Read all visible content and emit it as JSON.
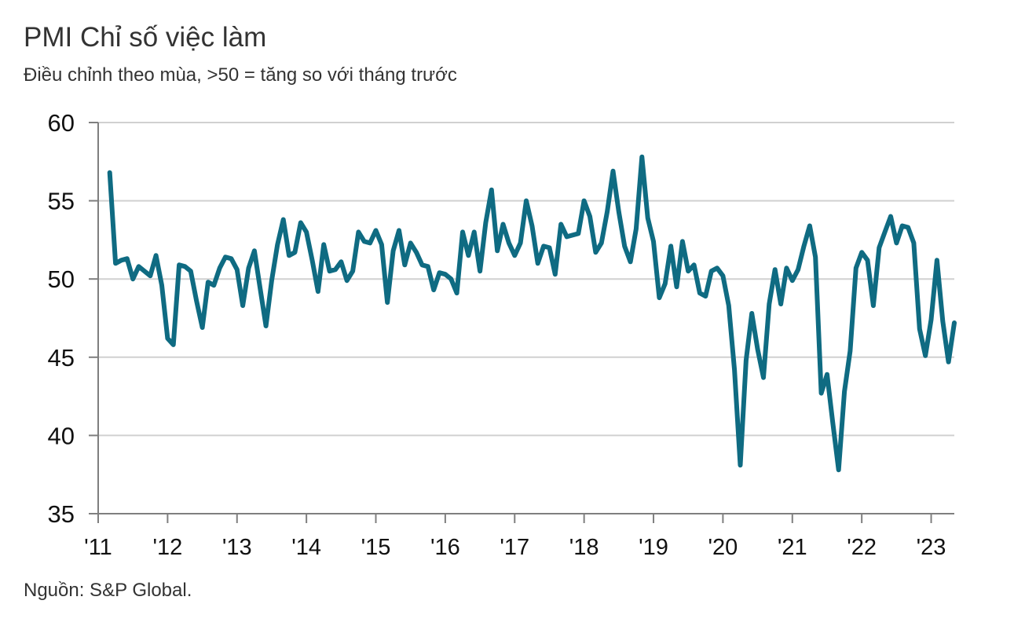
{
  "title": "PMI Chỉ số việc làm",
  "subtitle": "Điều chỉnh theo mùa, >50 = tăng so với tháng trước",
  "source": "Nguồn: S&P Global.",
  "colors": {
    "line": "#0f6b82",
    "grid": "#d0d0d0",
    "axis": "#7f7f7f"
  },
  "chart_data": {
    "type": "line",
    "title": "PMI Chỉ số việc làm",
    "subtitle": "Điều chỉnh theo mùa, >50 = tăng so với tháng trước",
    "xlabel": "",
    "ylabel": "",
    "ylim": [
      35,
      60
    ],
    "yticks": [
      35,
      40,
      45,
      50,
      55,
      60
    ],
    "xlim": [
      "2011-01",
      "2023-05"
    ],
    "xticks": [
      {
        "date": "2011-01",
        "label": "'11"
      },
      {
        "date": "2012-01",
        "label": "'12"
      },
      {
        "date": "2013-01",
        "label": "'13"
      },
      {
        "date": "2014-01",
        "label": "'14"
      },
      {
        "date": "2015-01",
        "label": "'15"
      },
      {
        "date": "2016-01",
        "label": "'16"
      },
      {
        "date": "2017-01",
        "label": "'17"
      },
      {
        "date": "2018-01",
        "label": "'18"
      },
      {
        "date": "2019-01",
        "label": "'19"
      },
      {
        "date": "2020-01",
        "label": "'20"
      },
      {
        "date": "2021-01",
        "label": "'21"
      },
      {
        "date": "2022-01",
        "label": "'22"
      },
      {
        "date": "2023-01",
        "label": "'23"
      }
    ],
    "grid": "horizontal",
    "legend": "none",
    "series": [
      {
        "start": "2011-03",
        "frequency": "monthly",
        "values": [
          56.8,
          51.0,
          51.2,
          51.3,
          50.0,
          50.8,
          50.5,
          50.2,
          51.5,
          49.6,
          46.2,
          45.8,
          50.9,
          50.8,
          50.5,
          48.6,
          46.9,
          49.8,
          49.6,
          50.7,
          51.4,
          51.3,
          50.6,
          48.3,
          50.7,
          51.8,
          49.4,
          47.0,
          49.9,
          52.2,
          53.8,
          51.5,
          51.7,
          53.6,
          53.0,
          51.2,
          49.2,
          52.2,
          50.5,
          50.6,
          51.1,
          49.9,
          50.5,
          53.0,
          52.4,
          52.3,
          53.1,
          52.2,
          48.5,
          51.8,
          53.1,
          50.9,
          52.3,
          51.7,
          50.9,
          50.8,
          49.3,
          50.4,
          50.3,
          50.0,
          49.1,
          53.0,
          51.5,
          53.0,
          50.5,
          53.6,
          55.7,
          51.8,
          53.5,
          52.3,
          51.5,
          52.3,
          55.0,
          53.4,
          51.0,
          52.1,
          52.0,
          50.3,
          53.5,
          52.7,
          52.8,
          52.9,
          55.0,
          54.0,
          51.7,
          52.3,
          54.3,
          56.9,
          54.3,
          52.1,
          51.1,
          53.2,
          57.8,
          53.9,
          52.4,
          48.8,
          49.7,
          52.1,
          49.5,
          52.4,
          50.5,
          50.9,
          49.1,
          48.9,
          50.5,
          50.7,
          50.2,
          48.3,
          44.2,
          38.1,
          44.8,
          47.8,
          45.5,
          43.7,
          48.4,
          50.6,
          48.4,
          50.7,
          49.9,
          50.6,
          52.1,
          53.4,
          51.4,
          42.7,
          43.9,
          40.8,
          37.8,
          42.8,
          45.4,
          50.7,
          51.7,
          51.2,
          48.3,
          52.0,
          53.0,
          54.0,
          52.3,
          53.4,
          53.3,
          52.3,
          46.8,
          45.1,
          47.4,
          51.2,
          47.3,
          44.7,
          47.2
        ]
      }
    ]
  }
}
